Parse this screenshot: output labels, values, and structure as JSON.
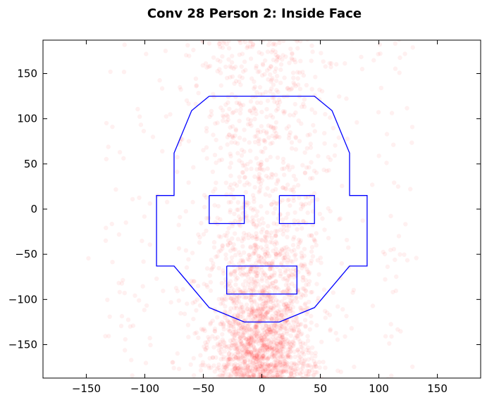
{
  "chart_data": {
    "type": "scatter",
    "title": "Conv 28 Person 2: Inside Face",
    "xlabel": "",
    "ylabel": "",
    "xlim": [
      -187,
      187
    ],
    "ylim": [
      -187,
      187
    ],
    "xticks": [
      -150,
      -100,
      -50,
      0,
      50,
      100,
      150
    ],
    "yticks": [
      -150,
      -100,
      -50,
      0,
      50,
      100,
      150
    ],
    "xtick_labels": [
      "−150",
      "−100",
      "−50",
      "0",
      "50",
      "100",
      "150"
    ],
    "ytick_labels": [
      "−150",
      "−100",
      "−50",
      "0",
      "50",
      "100",
      "150"
    ],
    "grid": false,
    "legend": "none",
    "point_color": "#ff0000",
    "point_alpha": 0.06,
    "face_color": "#0000ff",
    "points_note_count": 2600,
    "face_outline": [
      [
        -45,
        125
      ],
      [
        45,
        125
      ],
      [
        60,
        109
      ],
      [
        75,
        62
      ],
      [
        75,
        15
      ],
      [
        90,
        15
      ],
      [
        90,
        -63
      ],
      [
        75,
        -63
      ],
      [
        45,
        -109
      ],
      [
        15,
        -125
      ],
      [
        -15,
        -125
      ],
      [
        -45,
        -109
      ],
      [
        -75,
        -63
      ],
      [
        -90,
        -63
      ],
      [
        -90,
        15
      ],
      [
        -75,
        15
      ],
      [
        -75,
        62
      ],
      [
        -60,
        109
      ],
      [
        -45,
        125
      ]
    ],
    "left_eye": [
      [
        -45,
        15
      ],
      [
        -15,
        15
      ],
      [
        -15,
        -16
      ],
      [
        -45,
        -16
      ],
      [
        -45,
        15
      ]
    ],
    "right_eye": [
      [
        15,
        15
      ],
      [
        45,
        15
      ],
      [
        45,
        -16
      ],
      [
        15,
        -16
      ],
      [
        15,
        15
      ]
    ],
    "mouth": [
      [
        -30,
        -63
      ],
      [
        30,
        -63
      ],
      [
        30,
        -94
      ],
      [
        -30,
        -94
      ],
      [
        -30,
        -63
      ]
    ]
  }
}
